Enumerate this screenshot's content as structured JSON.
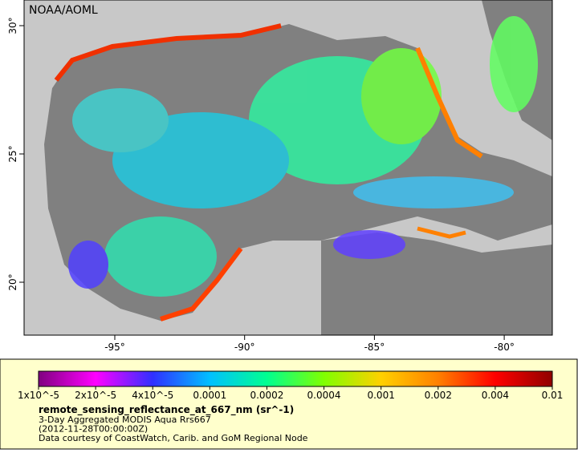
{
  "map": {
    "label": "NOAA/AOML",
    "lon_ticks": [
      "-95°",
      "-90°",
      "-85°",
      "-80°"
    ],
    "lat_ticks": [
      "30°",
      "25°",
      "20°"
    ]
  },
  "colorbar": {
    "labels": [
      "1x10^-5",
      "2x10^-5",
      "4x10^-5",
      "0.0001",
      "0.0002",
      "0.0004",
      "0.001",
      "0.002",
      "0.004",
      "0.01"
    ],
    "colors": [
      "#800080",
      "#ff00ff",
      "#3030ff",
      "#00c0ff",
      "#00ff90",
      "#80ff00",
      "#ffd000",
      "#ff8000",
      "#ff0000",
      "#900000"
    ]
  },
  "caption": {
    "variable": "remote_sensing_reflectance_at_667_nm (sr^-1)",
    "lines": [
      "3-Day Aggregated MODIS Aqua Rrs667",
      "(2012-11-28T00:00:00Z)",
      "Data courtesy of CoastWatch, Carib. and GoM Regional Node"
    ]
  }
}
